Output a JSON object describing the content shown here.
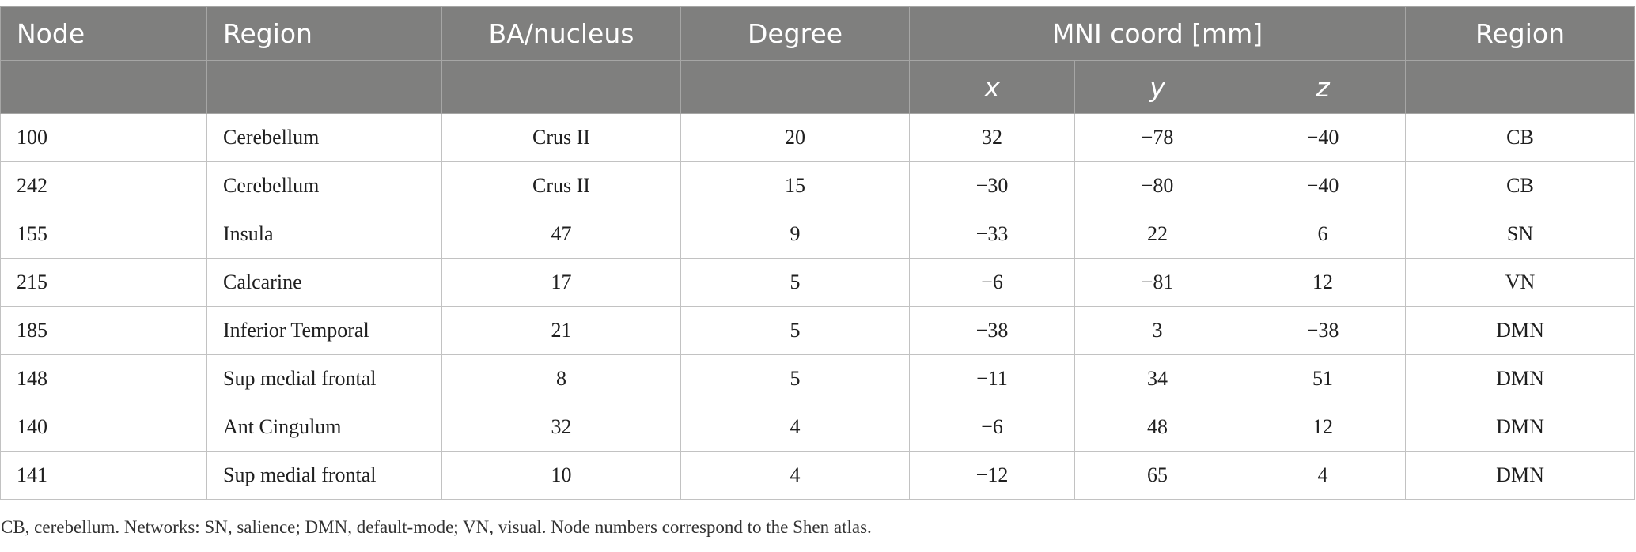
{
  "header": {
    "row1": [
      "Node",
      "Region",
      "BA/nucleus",
      "Degree",
      "MNI coord [mm]",
      "Region"
    ],
    "row2": [
      "",
      "",
      "",
      "",
      "x",
      "y",
      "z",
      ""
    ]
  },
  "rows": [
    [
      "100",
      "Cerebellum",
      "Crus II",
      "20",
      "32",
      "−78",
      "−40",
      "CB"
    ],
    [
      "242",
      "Cerebellum",
      "Crus II",
      "15",
      "−30",
      "−80",
      "−40",
      "CB"
    ],
    [
      "155",
      "Insula",
      "47",
      "9",
      "−33",
      "22",
      "6",
      "SN"
    ],
    [
      "215",
      "Calcarine",
      "17",
      "5",
      "−6",
      "−81",
      "12",
      "VN"
    ],
    [
      "185",
      "Inferior Temporal",
      "21",
      "5",
      "−38",
      "3",
      "−38",
      "DMN"
    ],
    [
      "148",
      "Sup medial frontal",
      "8",
      "5",
      "−11",
      "34",
      "51",
      "DMN"
    ],
    [
      "140",
      "Ant Cingulum",
      "32",
      "4",
      "−6",
      "48",
      "12",
      "DMN"
    ],
    [
      "141",
      "Sup medial frontal",
      "10",
      "4",
      "−12",
      "65",
      "4",
      "DMN"
    ]
  ],
  "footnote": "CB, cerebellum. Networks: SN, salience; DMN, default-mode; VN, visual. Node numbers correspond to the Shen atlas.",
  "colors": {
    "header_bg": "#7f7f7e",
    "header_text": "#ffffff",
    "grid": "#c2c2c2"
  }
}
